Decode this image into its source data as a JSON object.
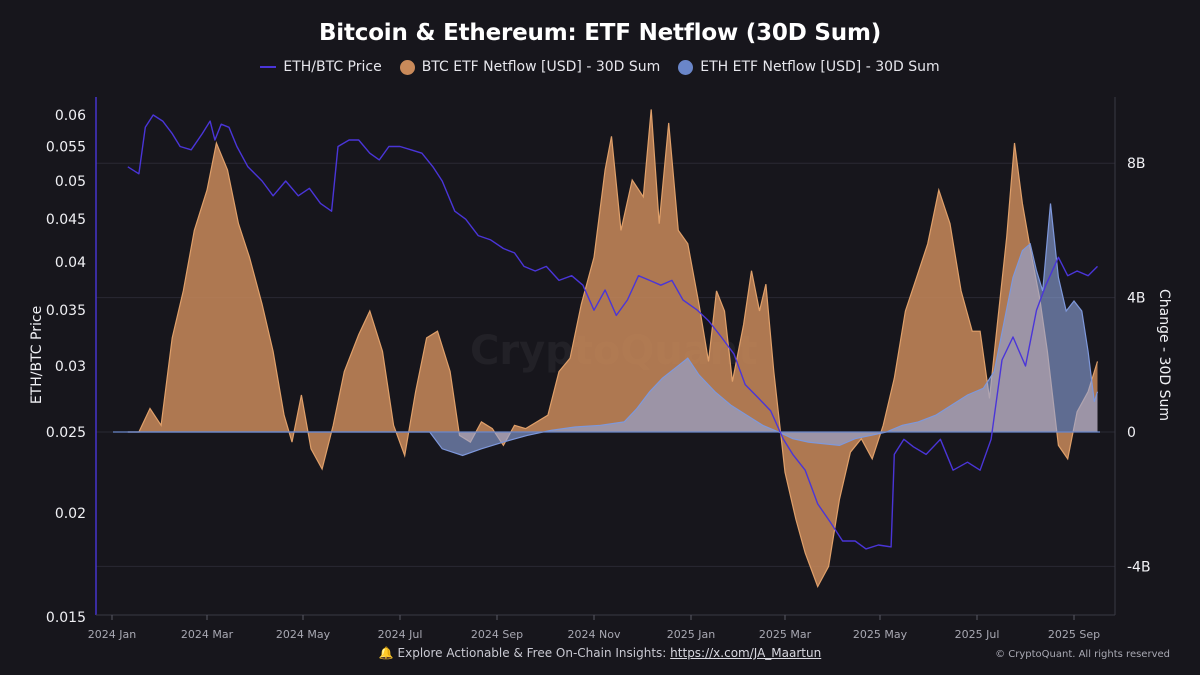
{
  "chart_data": {
    "type": "area",
    "title": "Bitcoin & Ethereum: ETF Netflow (30D Sum)",
    "legend_position": "top-center",
    "y_left_label": "ETH/BTC Price",
    "y_right_label": "Change - 30D Sum",
    "y_left_scale": "log",
    "y_left_range": [
      0.015,
      0.062
    ],
    "y_right_range": [
      -5.4,
      10
    ],
    "grid": true,
    "x_ticks": [
      "2024 Jan",
      "2024 Mar",
      "2024 May",
      "2024 Jul",
      "2024 Sep",
      "2024 Nov",
      "2025 Jan",
      "2025 Mar",
      "2025 May",
      "2025 Jul",
      "2025 Sep"
    ],
    "y_left_ticks": [
      "0.06",
      "0.055",
      "0.05",
      "0.045",
      "0.04",
      "0.035",
      "0.03",
      "0.025",
      "0.02",
      "0.015"
    ],
    "y_right_ticks": [
      "8B",
      "4B",
      "0",
      "-4B"
    ],
    "x_start": "2024-01-11",
    "series": [
      {
        "name": "ETH/BTC Price",
        "axis": "left",
        "color": "#4a35d8",
        "points": [
          [
            "2024-01-11",
            0.052
          ],
          [
            "2024-01-18",
            0.051
          ],
          [
            "2024-01-22",
            0.058
          ],
          [
            "2024-01-27",
            0.06
          ],
          [
            "2024-02-02",
            0.059
          ],
          [
            "2024-02-08",
            0.057
          ],
          [
            "2024-02-13",
            0.055
          ],
          [
            "2024-02-20",
            0.0545
          ],
          [
            "2024-02-27",
            0.057
          ],
          [
            "2024-03-03",
            0.059
          ],
          [
            "2024-03-06",
            0.056
          ],
          [
            "2024-03-10",
            0.0585
          ],
          [
            "2024-03-15",
            0.058
          ],
          [
            "2024-03-20",
            0.055
          ],
          [
            "2024-03-27",
            0.052
          ],
          [
            "2024-04-05",
            0.05
          ],
          [
            "2024-04-12",
            0.048
          ],
          [
            "2024-04-20",
            0.05
          ],
          [
            "2024-04-28",
            0.048
          ],
          [
            "2024-05-05",
            0.049
          ],
          [
            "2024-05-12",
            0.047
          ],
          [
            "2024-05-19",
            0.046
          ],
          [
            "2024-05-23",
            0.055
          ],
          [
            "2024-05-30",
            0.056
          ],
          [
            "2024-06-05",
            0.056
          ],
          [
            "2024-06-12",
            0.054
          ],
          [
            "2024-06-18",
            0.053
          ],
          [
            "2024-06-24",
            0.055
          ],
          [
            "2024-07-01",
            0.055
          ],
          [
            "2024-07-08",
            0.0545
          ],
          [
            "2024-07-15",
            0.054
          ],
          [
            "2024-07-22",
            0.052
          ],
          [
            "2024-07-28",
            0.05
          ],
          [
            "2024-08-05",
            0.046
          ],
          [
            "2024-08-12",
            0.045
          ],
          [
            "2024-08-20",
            0.043
          ],
          [
            "2024-08-28",
            0.0425
          ],
          [
            "2024-09-05",
            0.0415
          ],
          [
            "2024-09-12",
            0.041
          ],
          [
            "2024-09-18",
            0.0395
          ],
          [
            "2024-09-25",
            0.039
          ],
          [
            "2024-10-02",
            0.0395
          ],
          [
            "2024-10-10",
            0.038
          ],
          [
            "2024-10-18",
            0.0385
          ],
          [
            "2024-10-25",
            0.0375
          ],
          [
            "2024-11-01",
            0.035
          ],
          [
            "2024-11-08",
            0.037
          ],
          [
            "2024-11-15",
            0.0345
          ],
          [
            "2024-11-22",
            0.036
          ],
          [
            "2024-11-29",
            0.0385
          ],
          [
            "2024-12-06",
            0.038
          ],
          [
            "2024-12-13",
            0.0375
          ],
          [
            "2024-12-20",
            0.038
          ],
          [
            "2024-12-27",
            0.036
          ],
          [
            "2025-01-05",
            0.035
          ],
          [
            "2025-01-12",
            0.034
          ],
          [
            "2025-01-20",
            0.0325
          ],
          [
            "2025-01-28",
            0.031
          ],
          [
            "2025-02-04",
            0.0285
          ],
          [
            "2025-02-12",
            0.0275
          ],
          [
            "2025-02-20",
            0.0265
          ],
          [
            "2025-02-28",
            0.0245
          ],
          [
            "2025-03-06",
            0.0235
          ],
          [
            "2025-03-14",
            0.0225
          ],
          [
            "2025-03-22",
            0.0205
          ],
          [
            "2025-03-30",
            0.0195
          ],
          [
            "2025-04-07",
            0.0185
          ],
          [
            "2025-04-15",
            0.0185
          ],
          [
            "2025-04-22",
            0.0181
          ],
          [
            "2025-04-30",
            0.0183
          ],
          [
            "2025-05-08",
            0.0182
          ],
          [
            "2025-05-10",
            0.0235
          ],
          [
            "2025-05-16",
            0.0245
          ],
          [
            "2025-05-22",
            0.024
          ],
          [
            "2025-05-30",
            0.0235
          ],
          [
            "2025-06-08",
            0.0245
          ],
          [
            "2025-06-16",
            0.0225
          ],
          [
            "2025-06-25",
            0.023
          ],
          [
            "2025-07-03",
            0.0225
          ],
          [
            "2025-07-10",
            0.0245
          ],
          [
            "2025-07-17",
            0.0305
          ],
          [
            "2025-07-24",
            0.0325
          ],
          [
            "2025-08-01",
            0.03
          ],
          [
            "2025-08-08",
            0.035
          ],
          [
            "2025-08-14",
            0.0375
          ],
          [
            "2025-08-22",
            0.0405
          ],
          [
            "2025-08-28",
            0.0385
          ],
          [
            "2025-09-03",
            0.039
          ],
          [
            "2025-09-10",
            0.0385
          ],
          [
            "2025-09-16",
            0.0395
          ]
        ]
      },
      {
        "name": "BTC ETF Netflow [USD] - 30D Sum",
        "axis": "right",
        "unit": "B",
        "color": "#c98a5a",
        "points": [
          [
            "2024-01-11",
            0
          ],
          [
            "2024-01-18",
            0
          ],
          [
            "2024-01-25",
            0.7
          ],
          [
            "2024-02-01",
            0.2
          ],
          [
            "2024-02-08",
            2.8
          ],
          [
            "2024-02-15",
            4.2
          ],
          [
            "2024-02-22",
            6.0
          ],
          [
            "2024-03-01",
            7.2
          ],
          [
            "2024-03-07",
            8.6
          ],
          [
            "2024-03-14",
            7.8
          ],
          [
            "2024-03-21",
            6.2
          ],
          [
            "2024-03-28",
            5.2
          ],
          [
            "2024-04-05",
            3.8
          ],
          [
            "2024-04-12",
            2.4
          ],
          [
            "2024-04-19",
            0.5
          ],
          [
            "2024-04-24",
            -0.3
          ],
          [
            "2024-04-30",
            1.1
          ],
          [
            "2024-05-06",
            -0.5
          ],
          [
            "2024-05-13",
            -1.1
          ],
          [
            "2024-05-20",
            0.2
          ],
          [
            "2024-05-27",
            1.8
          ],
          [
            "2024-06-05",
            2.9
          ],
          [
            "2024-06-12",
            3.6
          ],
          [
            "2024-06-20",
            2.4
          ],
          [
            "2024-06-27",
            0.2
          ],
          [
            "2024-07-04",
            -0.7
          ],
          [
            "2024-07-11",
            1.2
          ],
          [
            "2024-07-18",
            2.8
          ],
          [
            "2024-07-25",
            3.0
          ],
          [
            "2024-08-02",
            1.8
          ],
          [
            "2024-08-08",
            -0.1
          ],
          [
            "2024-08-15",
            -0.3
          ],
          [
            "2024-08-22",
            0.3
          ],
          [
            "2024-08-29",
            0.1
          ],
          [
            "2024-09-05",
            -0.4
          ],
          [
            "2024-09-12",
            0.2
          ],
          [
            "2024-09-19",
            0.1
          ],
          [
            "2024-09-26",
            0.3
          ],
          [
            "2024-10-03",
            0.5
          ],
          [
            "2024-10-10",
            1.8
          ],
          [
            "2024-10-17",
            2.2
          ],
          [
            "2024-10-24",
            3.8
          ],
          [
            "2024-11-01",
            5.2
          ],
          [
            "2024-11-08",
            7.8
          ],
          [
            "2024-11-12",
            8.8
          ],
          [
            "2024-11-18",
            6.0
          ],
          [
            "2024-11-25",
            7.5
          ],
          [
            "2024-12-02",
            7.0
          ],
          [
            "2024-12-07",
            9.6
          ],
          [
            "2024-12-12",
            6.2
          ],
          [
            "2024-12-18",
            9.2
          ],
          [
            "2024-12-24",
            6.0
          ],
          [
            "2024-12-30",
            5.6
          ],
          [
            "2025-01-06",
            3.8
          ],
          [
            "2025-01-12",
            2.1
          ],
          [
            "2025-01-17",
            4.2
          ],
          [
            "2025-01-22",
            3.6
          ],
          [
            "2025-01-27",
            1.5
          ],
          [
            "2025-02-03",
            3.2
          ],
          [
            "2025-02-08",
            4.8
          ],
          [
            "2025-02-13",
            3.6
          ],
          [
            "2025-02-17",
            4.4
          ],
          [
            "2025-02-22",
            1.8
          ],
          [
            "2025-03-01",
            -1.2
          ],
          [
            "2025-03-08",
            -2.6
          ],
          [
            "2025-03-14",
            -3.6
          ],
          [
            "2025-03-22",
            -4.6
          ],
          [
            "2025-03-29",
            -4.0
          ],
          [
            "2025-04-05",
            -2.0
          ],
          [
            "2025-04-12",
            -0.6
          ],
          [
            "2025-04-19",
            -0.2
          ],
          [
            "2025-04-26",
            -0.8
          ],
          [
            "2025-05-03",
            0.2
          ],
          [
            "2025-05-10",
            1.6
          ],
          [
            "2025-05-17",
            3.6
          ],
          [
            "2025-05-24",
            4.6
          ],
          [
            "2025-05-31",
            5.6
          ],
          [
            "2025-06-07",
            7.2
          ],
          [
            "2025-06-14",
            6.2
          ],
          [
            "2025-06-21",
            4.2
          ],
          [
            "2025-06-28",
            3.0
          ],
          [
            "2025-07-03",
            3.0
          ],
          [
            "2025-07-09",
            1.0
          ],
          [
            "2025-07-14",
            3.2
          ],
          [
            "2025-07-20",
            5.8
          ],
          [
            "2025-07-25",
            8.6
          ],
          [
            "2025-07-30",
            6.8
          ],
          [
            "2025-08-05",
            5.2
          ],
          [
            "2025-08-10",
            4.0
          ],
          [
            "2025-08-15",
            2.4
          ],
          [
            "2025-08-22",
            -0.4
          ],
          [
            "2025-08-28",
            -0.8
          ],
          [
            "2025-09-03",
            0.6
          ],
          [
            "2025-09-10",
            1.2
          ],
          [
            "2025-09-16",
            2.1
          ]
        ]
      },
      {
        "name": "ETH ETF Netflow [USD] - 30D Sum",
        "axis": "right",
        "unit": "B",
        "color": "#6a86c9",
        "points": [
          [
            "2024-01-11",
            0
          ],
          [
            "2024-07-20",
            0
          ],
          [
            "2024-07-28",
            -0.5
          ],
          [
            "2024-08-10",
            -0.7
          ],
          [
            "2024-08-22",
            -0.5
          ],
          [
            "2024-09-05",
            -0.3
          ],
          [
            "2024-09-20",
            -0.1
          ],
          [
            "2024-10-05",
            0.05
          ],
          [
            "2024-10-20",
            0.15
          ],
          [
            "2024-11-05",
            0.2
          ],
          [
            "2024-11-20",
            0.3
          ],
          [
            "2024-11-28",
            0.7
          ],
          [
            "2024-12-06",
            1.2
          ],
          [
            "2024-12-14",
            1.6
          ],
          [
            "2024-12-22",
            1.9
          ],
          [
            "2024-12-30",
            2.2
          ],
          [
            "2025-01-06",
            1.7
          ],
          [
            "2025-01-16",
            1.2
          ],
          [
            "2025-01-26",
            0.8
          ],
          [
            "2025-02-05",
            0.5
          ],
          [
            "2025-02-15",
            0.2
          ],
          [
            "2025-02-25",
            0.0
          ],
          [
            "2025-03-06",
            -0.2
          ],
          [
            "2025-03-16",
            -0.3
          ],
          [
            "2025-03-26",
            -0.35
          ],
          [
            "2025-04-05",
            -0.4
          ],
          [
            "2025-04-15",
            -0.2
          ],
          [
            "2025-04-25",
            -0.1
          ],
          [
            "2025-05-05",
            0.0
          ],
          [
            "2025-05-15",
            0.2
          ],
          [
            "2025-05-25",
            0.3
          ],
          [
            "2025-06-05",
            0.5
          ],
          [
            "2025-06-15",
            0.8
          ],
          [
            "2025-06-25",
            1.1
          ],
          [
            "2025-07-05",
            1.3
          ],
          [
            "2025-07-12",
            1.8
          ],
          [
            "2025-07-18",
            3.2
          ],
          [
            "2025-07-24",
            4.6
          ],
          [
            "2025-07-30",
            5.4
          ],
          [
            "2025-08-04",
            5.6
          ],
          [
            "2025-08-08",
            4.8
          ],
          [
            "2025-08-12",
            4.2
          ],
          [
            "2025-08-17",
            6.8
          ],
          [
            "2025-08-22",
            4.6
          ],
          [
            "2025-08-27",
            3.6
          ],
          [
            "2025-09-01",
            3.9
          ],
          [
            "2025-09-06",
            3.6
          ],
          [
            "2025-09-10",
            2.4
          ],
          [
            "2025-09-14",
            0.9
          ],
          [
            "2025-09-16",
            1.2
          ]
        ]
      }
    ]
  },
  "footer": {
    "bell_icon": "🔔",
    "text": "Explore Actionable & Free On-Chain Insights:",
    "link": "https://x.com/JA_Maartun",
    "copyright": "© CryptoQuant. All rights reserved",
    "watermark": "CryptoQuant"
  }
}
